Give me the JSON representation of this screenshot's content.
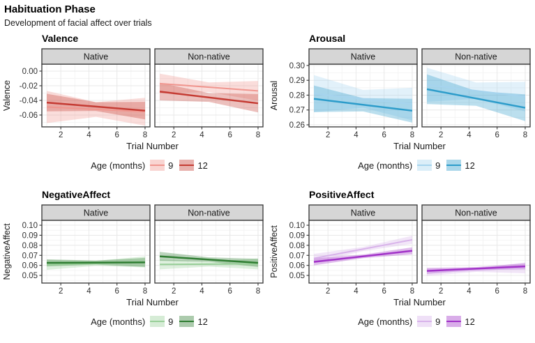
{
  "header": {
    "title": "Habituation Phase",
    "subtitle": "Development of facial affect over trials"
  },
  "chart_data": [
    {
      "type": "line",
      "title": "Valence",
      "ylabel": "Valence",
      "xlabel": "Trial Number",
      "x_domain": [
        1,
        8
      ],
      "x_ticks": [
        2,
        4,
        6,
        8
      ],
      "x_minor_ticks": [
        1,
        3,
        5,
        7
      ],
      "ylim": [
        -0.0762,
        0.0095
      ],
      "y_ticks": [
        0.0,
        -0.02,
        -0.04,
        -0.06
      ],
      "y_tick_labels": [
        "0.00",
        "-0.02",
        "-0.04",
        "-0.06"
      ],
      "legend": {
        "title": "Age (months)",
        "items": [
          {
            "label": "9",
            "color": "#F0968F"
          },
          {
            "label": "12",
            "color": "#C53B33"
          }
        ]
      },
      "facets": [
        {
          "label": "Native",
          "series": [
            {
              "age": "9",
              "line_x": [
                1,
                8
              ],
              "line_y": [
                -0.049,
                -0.0555
              ],
              "ribbon_x": [
                1,
                4.5,
                8
              ],
              "ribbon_upper": [
                -0.027,
                -0.0425,
                -0.0365
              ],
              "ribbon_lower": [
                -0.071,
                -0.0625,
                -0.0745
              ]
            },
            {
              "age": "12",
              "line_x": [
                1,
                8
              ],
              "line_y": [
                -0.043,
                -0.054
              ],
              "ribbon_x": [
                1,
                4.5,
                8
              ],
              "ribbon_upper": [
                -0.031,
                -0.0425,
                -0.042
              ],
              "ribbon_lower": [
                -0.055,
                -0.0545,
                -0.066
              ]
            }
          ]
        },
        {
          "label": "Non-native",
          "series": [
            {
              "age": "9",
              "line_x": [
                1,
                8
              ],
              "line_y": [
                -0.017,
                -0.027
              ],
              "ribbon_x": [
                1,
                4.5,
                8
              ],
              "ribbon_upper": [
                -0.0035,
                -0.0155,
                -0.0135
              ],
              "ribbon_lower": [
                -0.0305,
                -0.0285,
                -0.0405
              ]
            },
            {
              "age": "12",
              "line_x": [
                1,
                8
              ],
              "line_y": [
                -0.028,
                -0.044
              ],
              "ribbon_x": [
                1,
                4.5,
                8
              ],
              "ribbon_upper": [
                -0.016,
                -0.03,
                -0.0315
              ],
              "ribbon_lower": [
                -0.04,
                -0.042,
                -0.0565
              ]
            }
          ]
        }
      ]
    },
    {
      "type": "line",
      "title": "Arousal",
      "ylabel": "Arousal",
      "xlabel": "Trial Number",
      "x_domain": [
        1,
        8
      ],
      "x_ticks": [
        2,
        4,
        6,
        8
      ],
      "x_minor_ticks": [
        1,
        3,
        5,
        7
      ],
      "ylim": [
        0.2586,
        0.3009
      ],
      "y_ticks": [
        0.3,
        0.29,
        0.28,
        0.27,
        0.26
      ],
      "y_tick_labels": [
        "0.30",
        "0.29",
        "0.28",
        "0.27",
        "0.26"
      ],
      "legend": {
        "title": "Age (months)",
        "items": [
          {
            "label": "9",
            "color": "#A6D4EE"
          },
          {
            "label": "12",
            "color": "#2C9CCA"
          }
        ]
      },
      "facets": [
        {
          "label": "Native",
          "series": [
            {
              "age": "9",
              "line_x": [
                1,
                8
              ],
              "line_y": [
                0.281,
                0.274
              ],
              "ribbon_x": [
                1,
                4.5,
                8
              ],
              "ribbon_upper": [
                0.2935,
                0.2835,
                0.285
              ],
              "ribbon_lower": [
                0.2685,
                0.2715,
                0.263
              ]
            },
            {
              "age": "12",
              "line_x": [
                1,
                8
              ],
              "line_y": [
                0.2775,
                0.2695
              ],
              "ribbon_x": [
                1,
                4.5,
                8
              ],
              "ribbon_upper": [
                0.2865,
                0.278,
                0.2775
              ],
              "ribbon_lower": [
                0.2685,
                0.269,
                0.2615
              ]
            }
          ]
        },
        {
          "label": "Non-native",
          "series": [
            {
              "age": "9",
              "line_x": [
                1,
                8
              ],
              "line_y": [
                0.287,
                0.279
              ],
              "ribbon_x": [
                1,
                4.5,
                8
              ],
              "ribbon_upper": [
                0.2985,
                0.2885,
                0.289
              ],
              "ribbon_lower": [
                0.2755,
                0.2775,
                0.269
              ]
            },
            {
              "age": "12",
              "line_x": [
                1,
                8
              ],
              "line_y": [
                0.284,
                0.2715
              ],
              "ribbon_x": [
                1,
                4.5,
                8
              ],
              "ribbon_upper": [
                0.294,
                0.2828,
                0.2805
              ],
              "ribbon_lower": [
                0.274,
                0.2728,
                0.2625
              ]
            }
          ]
        }
      ]
    },
    {
      "type": "line",
      "title": "NegativeAffect",
      "ylabel": "NegativeAffect",
      "xlabel": "Trial Number",
      "x_domain": [
        1,
        8
      ],
      "x_ticks": [
        2,
        4,
        6,
        8
      ],
      "x_minor_ticks": [
        1,
        3,
        5,
        7
      ],
      "ylim": [
        0.0424,
        0.1049
      ],
      "y_ticks": [
        0.1,
        0.09,
        0.08,
        0.07,
        0.06,
        0.05
      ],
      "y_tick_labels": [
        "0.10",
        "0.09",
        "0.08",
        "0.07",
        "0.06",
        "0.05"
      ],
      "legend": {
        "title": "Age (months)",
        "items": [
          {
            "label": "9",
            "color": "#98CF98"
          },
          {
            "label": "12",
            "color": "#2F7D32"
          }
        ]
      },
      "facets": [
        {
          "label": "Native",
          "series": [
            {
              "age": "9",
              "line_x": [
                1,
                8
              ],
              "line_y": [
                0.0605,
                0.0635
              ],
              "ribbon_x": [
                1,
                4.5,
                8
              ],
              "ribbon_upper": [
                0.0655,
                0.0645,
                0.069
              ],
              "ribbon_lower": [
                0.0555,
                0.0595,
                0.058
              ]
            },
            {
              "age": "12",
              "line_x": [
                1,
                8
              ],
              "line_y": [
                0.0625,
                0.063
              ],
              "ribbon_x": [
                1,
                4.5,
                8
              ],
              "ribbon_upper": [
                0.066,
                0.0648,
                0.0675
              ],
              "ribbon_lower": [
                0.059,
                0.0608,
                0.0585
              ]
            }
          ]
        },
        {
          "label": "Non-native",
          "series": [
            {
              "age": "9",
              "line_x": [
                1,
                8
              ],
              "line_y": [
                0.061,
                0.0615
              ],
              "ribbon_x": [
                1,
                4.5,
                8
              ],
              "ribbon_upper": [
                0.066,
                0.0638,
                0.067
              ],
              "ribbon_lower": [
                0.056,
                0.0588,
                0.056
              ]
            },
            {
              "age": "12",
              "line_x": [
                1,
                8
              ],
              "line_y": [
                0.069,
                0.0625
              ],
              "ribbon_x": [
                1,
                4.5,
                8
              ],
              "ribbon_upper": [
                0.0735,
                0.068,
                0.0665
              ],
              "ribbon_lower": [
                0.0645,
                0.0636,
                0.0585
              ]
            }
          ]
        }
      ]
    },
    {
      "type": "line",
      "title": "PositiveAffect",
      "ylabel": "PositiveAffect",
      "xlabel": "Trial Number",
      "x_domain": [
        1,
        8
      ],
      "x_ticks": [
        2,
        4,
        6,
        8
      ],
      "x_minor_ticks": [
        1,
        3,
        5,
        7
      ],
      "ylim": [
        0.0424,
        0.1049
      ],
      "y_ticks": [
        0.1,
        0.09,
        0.08,
        0.07,
        0.06,
        0.05
      ],
      "y_tick_labels": [
        "0.10",
        "0.09",
        "0.08",
        "0.07",
        "0.06",
        "0.05"
      ],
      "legend": {
        "title": "Age (months)",
        "items": [
          {
            "label": "9",
            "color": "#D8B2EA"
          },
          {
            "label": "12",
            "color": "#A132C8"
          }
        ]
      },
      "facets": [
        {
          "label": "Native",
          "series": [
            {
              "age": "9",
              "line_x": [
                1,
                8
              ],
              "line_y": [
                0.067,
                0.0855
              ],
              "ribbon_x": [
                1,
                4.5,
                8
              ],
              "ribbon_upper": [
                0.0715,
                0.0783,
                0.0895
              ],
              "ribbon_lower": [
                0.0625,
                0.0743,
                0.0815
              ]
            },
            {
              "age": "12",
              "line_x": [
                1,
                8
              ],
              "line_y": [
                0.0635,
                0.0745
              ],
              "ribbon_x": [
                1,
                4.5,
                8
              ],
              "ribbon_upper": [
                0.067,
                0.0708,
                0.078
              ],
              "ribbon_lower": [
                0.06,
                0.0672,
                0.071
              ]
            }
          ]
        },
        {
          "label": "Non-native",
          "series": [
            {
              "age": "9",
              "line_x": [
                1,
                8
              ],
              "line_y": [
                0.053,
                0.0575
              ],
              "ribbon_x": [
                1,
                4.5,
                8
              ],
              "ribbon_upper": [
                0.0565,
                0.0571,
                0.063
              ],
              "ribbon_lower": [
                0.0495,
                0.0535,
                0.052
              ]
            },
            {
              "age": "12",
              "line_x": [
                1,
                8
              ],
              "line_y": [
                0.0545,
                0.059
              ],
              "ribbon_x": [
                1,
                4.5,
                8
              ],
              "ribbon_upper": [
                0.0575,
                0.0583,
                0.062
              ],
              "ribbon_lower": [
                0.0515,
                0.0553,
                0.056
              ]
            }
          ]
        }
      ]
    }
  ]
}
